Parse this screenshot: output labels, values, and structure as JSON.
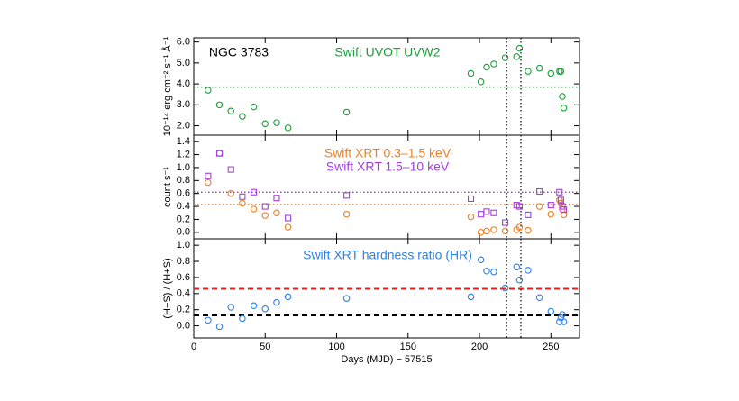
{
  "chart_data": [
    {
      "type": "scatter",
      "annotation": "NGC 3783",
      "ylabel": "10⁻¹⁴ erg cm⁻² s⁻¹ Å⁻¹",
      "x": [
        10,
        18,
        26,
        34,
        42,
        50,
        58,
        66,
        107,
        194,
        201,
        205,
        210,
        218,
        226,
        228,
        234,
        242,
        250,
        256,
        257,
        258,
        259
      ],
      "series": [
        {
          "name": "Swift UVOT UVW2",
          "color": "#1a9e3a",
          "marker": "circle",
          "values": [
            3.7,
            3.0,
            2.7,
            2.45,
            2.9,
            2.1,
            2.15,
            1.9,
            2.65,
            4.5,
            4.1,
            4.8,
            4.95,
            5.25,
            5.3,
            5.7,
            4.6,
            4.75,
            4.5,
            4.6,
            4.6,
            3.4,
            2.85
          ]
        }
      ],
      "hlines": [
        {
          "value": 3.85,
          "color": "#1a9e3a",
          "style": "dotted"
        }
      ],
      "vlines": [
        219,
        229
      ],
      "xlim": [
        0,
        270
      ],
      "xticks": [
        0,
        50,
        100,
        150,
        200,
        250
      ],
      "ylim": [
        1.55,
        6.2
      ],
      "yticks": [
        {
          "value": 2,
          "label": "2.0"
        },
        {
          "value": 3,
          "label": "3.0"
        },
        {
          "value": 4,
          "label": "4.0"
        },
        {
          "value": 5,
          "label": "5.0"
        },
        {
          "value": 6,
          "label": "6.0"
        }
      ]
    },
    {
      "type": "scatter",
      "ylabel": "count s⁻¹",
      "x": [
        10,
        18,
        26,
        34,
        42,
        50,
        58,
        66,
        107,
        194,
        201,
        205,
        210,
        218,
        226,
        228,
        234,
        242,
        250,
        256,
        257,
        258,
        259
      ],
      "series": [
        {
          "name": "Swift XRT 0.3–1.5 keV",
          "color": "#f07f1f",
          "marker": "circle",
          "values": [
            0.77,
            1.22,
            0.6,
            0.45,
            0.36,
            0.26,
            0.3,
            0.08,
            0.28,
            0.24,
            0.0,
            0.02,
            0.04,
            0.02,
            0.04,
            0.08,
            0.03,
            0.4,
            0.28,
            0.5,
            0.45,
            0.35,
            0.27
          ]
        },
        {
          "name": "Swift XRT 1.5–10 keV",
          "color": "#a33fe0",
          "marker": "square",
          "values": [
            0.87,
            1.22,
            0.97,
            0.55,
            0.62,
            0.4,
            0.53,
            0.22,
            0.57,
            0.52,
            0.28,
            0.32,
            0.3,
            0.15,
            0.42,
            0.4,
            0.27,
            0.63,
            0.42,
            0.62,
            0.5,
            0.4,
            0.35
          ]
        }
      ],
      "hlines": [
        {
          "value": 0.62,
          "color": "#a33fe0",
          "style": "dotted"
        },
        {
          "value": 0.43,
          "color": "#f07f1f",
          "style": "dotted"
        }
      ],
      "vlines": [
        219,
        229
      ],
      "xlim": [
        0,
        270
      ],
      "xticks": [
        0,
        50,
        100,
        150,
        200,
        250
      ],
      "ylim": [
        -0.1,
        1.5
      ],
      "yticks": [
        {
          "value": 0,
          "label": "0.0"
        },
        0.2,
        0.4,
        0.6,
        0.8,
        {
          "value": 1,
          "label": "1.0"
        },
        1.2,
        1.4
      ]
    },
    {
      "type": "scatter",
      "ylabel": "(H−S) / (H+S)",
      "xlabel": "Days (MJD) − 57515",
      "x": [
        10,
        18,
        26,
        34,
        42,
        50,
        58,
        66,
        107,
        194,
        201,
        205,
        210,
        218,
        226,
        228,
        234,
        242,
        250,
        256,
        257,
        258,
        259
      ],
      "series": [
        {
          "name": "Swift XRT hardness ratio (HR)",
          "color": "#2f80e0",
          "marker": "circle",
          "values": [
            0.07,
            -0.01,
            0.23,
            0.09,
            0.25,
            0.21,
            0.29,
            0.36,
            0.34,
            0.36,
            0.82,
            0.68,
            0.67,
            0.47,
            0.73,
            0.57,
            0.69,
            0.35,
            0.18,
            0.05,
            0.1,
            0.14,
            0.05
          ]
        }
      ],
      "hlines": [
        {
          "value": 0.46,
          "color": "#e02020",
          "style": "dashed"
        },
        {
          "value": 0.13,
          "color": "#000000",
          "style": "dashed"
        }
      ],
      "vlines": [
        219,
        229
      ],
      "xlim": [
        0,
        270
      ],
      "xticks": [
        0,
        50,
        100,
        150,
        200,
        250
      ],
      "ylim": [
        -0.15,
        1.08
      ],
      "yticks": [
        {
          "value": 0,
          "label": "0.0"
        },
        0.2,
        0.4,
        0.6,
        0.8,
        {
          "value": 1,
          "label": "1.0"
        }
      ]
    }
  ]
}
